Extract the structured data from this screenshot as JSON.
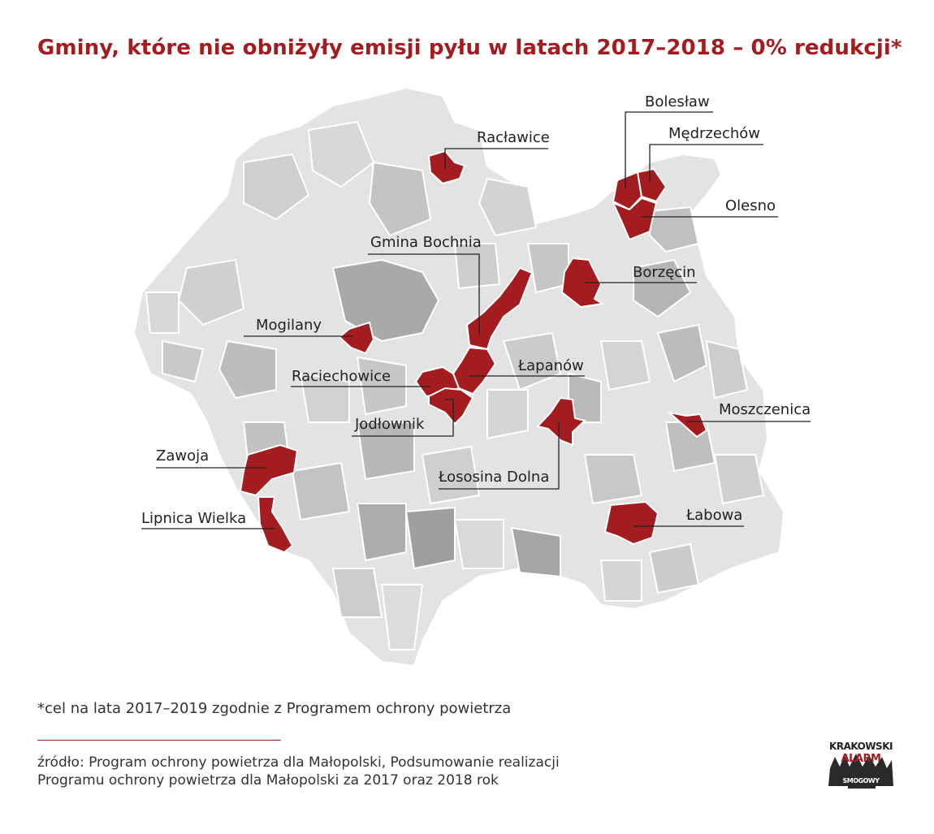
{
  "title": "Gminy, które nie obniżyły emisji pyłu w latach 2017–2018 – 0% redukcji*",
  "colors": {
    "highlight": "#a31d20",
    "region_light": "#e3e3e3",
    "region_mid": "#cfcfcf",
    "region_dark": "#a9a9a9",
    "border": "#ffffff",
    "text": "#222222"
  },
  "gminy": [
    {
      "id": "raclawice",
      "label": "Racławice"
    },
    {
      "id": "boleslaw",
      "label": "Bolesław"
    },
    {
      "id": "medrzechow",
      "label": "Mędrzechów"
    },
    {
      "id": "olesno",
      "label": "Olesno"
    },
    {
      "id": "gmina-bochnia",
      "label": "Gmina Bochnia"
    },
    {
      "id": "borzecin",
      "label": "Borzęcin"
    },
    {
      "id": "mogilany",
      "label": "Mogilany"
    },
    {
      "id": "lapanow",
      "label": "Łapanów"
    },
    {
      "id": "raciechowice",
      "label": "Raciechowice"
    },
    {
      "id": "moszczenica",
      "label": "Moszczenica"
    },
    {
      "id": "jodlownik",
      "label": "Jodłownik"
    },
    {
      "id": "zawoja",
      "label": "Zawoja"
    },
    {
      "id": "lososina-dolna",
      "label": "Łososina Dolna"
    },
    {
      "id": "labowa",
      "label": "Łabowa"
    },
    {
      "id": "lipnica-wielka",
      "label": "Lipnica Wielka"
    }
  ],
  "footnote": "*cel na lata 2017–2019 zgodnie z Programem ochrony powietrza",
  "source": {
    "line1": "źródło: Program ochrony powietrza dla Małopolski, Podsumowanie realizacji",
    "line2": "Programu ochrony powietrza dla Małopolski za 2017 oraz 2018 rok"
  },
  "logo": {
    "line1": "KRAKOWSKI",
    "line2": "ALARM",
    "line3": "SMOGOWY"
  }
}
